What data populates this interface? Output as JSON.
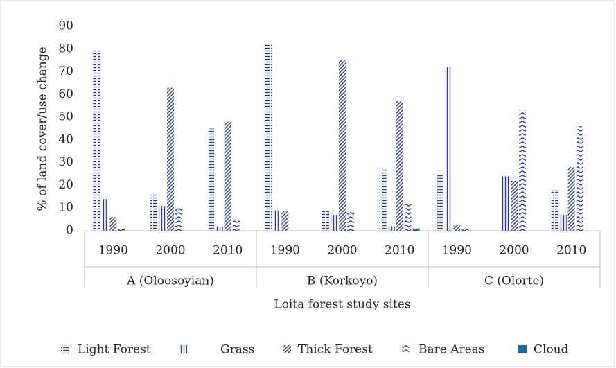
{
  "chart_data": {
    "type": "bar",
    "y_label": "% of land cover/use change",
    "x_label": "Loita forest study sites",
    "groups": [
      "A (Oloosoyian)",
      "B (Korkoyo)",
      "C (Olorte)"
    ],
    "categories": [
      "1990",
      "2000",
      "2010",
      "1990",
      "2000",
      "2010",
      "1990",
      "2000",
      "2010"
    ],
    "series": [
      {
        "name": "Light Forest",
        "color": "#2b3a9b",
        "pattern": "horizontal",
        "values": [
          80,
          16,
          45,
          82,
          9,
          27,
          25,
          0,
          18
        ]
      },
      {
        "name": "Grass",
        "color": "#2b3a9b",
        "pattern": "vertical",
        "values": [
          14,
          11,
          2,
          9,
          7,
          2,
          72,
          24,
          7
        ]
      },
      {
        "name": "Thick Forest",
        "color": "#2b3a9b",
        "pattern": "diagonal",
        "values": [
          6,
          63,
          48,
          8.5,
          75,
          57,
          2.5,
          22,
          28
        ]
      },
      {
        "name": "Bare Areas",
        "color": "#2b3a9b",
        "pattern": "wave",
        "values": [
          1,
          10,
          5,
          0,
          8.5,
          12,
          1,
          53,
          46
        ]
      },
      {
        "name": "Cloud",
        "color": "#1f6aa5",
        "pattern": "solid",
        "values": [
          0,
          0,
          0,
          0,
          0,
          1,
          0,
          0,
          0
        ]
      }
    ],
    "ylim": [
      0,
      90
    ],
    "yticks": [
      0,
      10,
      20,
      30,
      40,
      50,
      60,
      70,
      80,
      90
    ],
    "grid": false,
    "legend": "bottom"
  }
}
